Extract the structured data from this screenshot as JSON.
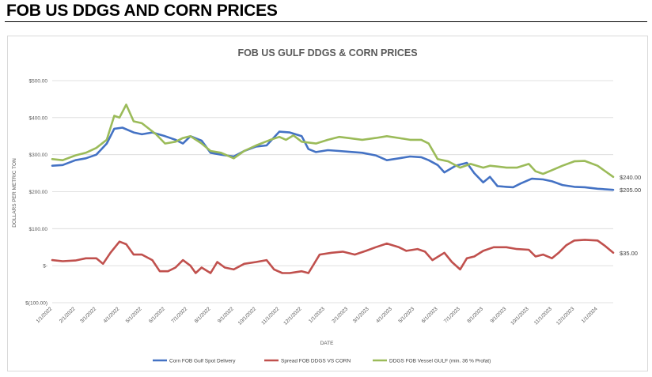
{
  "header": {
    "title": "FOB US DDGS AND CORN PRICES"
  },
  "chart_data": {
    "type": "line",
    "title": "FOB US GULF DDGS & CORN PRICES",
    "xlabel": "DATE",
    "ylabel": "DOLLARS PER METRIC TON",
    "ylim": [
      -100,
      500
    ],
    "yticks": [
      -100,
      0,
      100,
      200,
      300,
      400,
      500
    ],
    "ytick_labels": [
      "$(100.00)",
      "$-",
      "$100.00",
      "$200.00",
      "$300.00",
      "$400.00",
      "$500.00"
    ],
    "x_tick_labels": [
      "1/1/2022",
      "2/1/2022",
      "3/1/2022",
      "4/1/2022",
      "5/1/2022",
      "6/1/2022",
      "7/1/2022",
      "8/1/2022",
      "9/1/2022",
      "10/1/2022",
      "11/1/2022",
      "12/1/2022",
      "1/1/2023",
      "2/1/2023",
      "3/1/2023",
      "4/1/2023",
      "5/1/2023",
      "6/1/2023",
      "7/1/2023",
      "8/1/2023",
      "9/1/2023",
      "10/1/2023",
      "11/1/2023",
      "12/1/2023",
      "1/1/2024"
    ],
    "x_start": "1/1/2022",
    "x_end": "1/22/2024",
    "grid": true,
    "legend_position": "bottom",
    "end_labels": [
      "$240.00",
      "$205.00",
      "$35.00"
    ],
    "series": [
      {
        "name": "Corn FOB Gulf Spot Delivery",
        "color": "#4472c4",
        "points": [
          [
            "1/1/2022",
            270
          ],
          [
            "1/15/2022",
            272
          ],
          [
            "2/1/2022",
            285
          ],
          [
            "2/15/2022",
            290
          ],
          [
            "3/1/2022",
            300
          ],
          [
            "3/15/2022",
            330
          ],
          [
            "3/25/2022",
            370
          ],
          [
            "4/5/2022",
            373
          ],
          [
            "4/20/2022",
            360
          ],
          [
            "5/1/2022",
            355
          ],
          [
            "5/15/2022",
            360
          ],
          [
            "6/1/2022",
            350
          ],
          [
            "6/15/2022",
            340
          ],
          [
            "6/25/2022",
            330
          ],
          [
            "7/5/2022",
            350
          ],
          [
            "7/20/2022",
            338
          ],
          [
            "8/1/2022",
            305
          ],
          [
            "8/15/2022",
            300
          ],
          [
            "9/1/2022",
            295
          ],
          [
            "9/15/2022",
            310
          ],
          [
            "10/1/2022",
            322
          ],
          [
            "10/15/2022",
            325
          ],
          [
            "11/1/2022",
            362
          ],
          [
            "11/15/2022",
            360
          ],
          [
            "12/1/2022",
            350
          ],
          [
            "12/10/2022",
            315
          ],
          [
            "12/20/2022",
            307
          ],
          [
            "1/5/2023",
            312
          ],
          [
            "1/20/2023",
            310
          ],
          [
            "2/1/2023",
            308
          ],
          [
            "2/20/2023",
            305
          ],
          [
            "3/10/2023",
            298
          ],
          [
            "3/25/2023",
            285
          ],
          [
            "4/10/2023",
            290
          ],
          [
            "4/25/2023",
            295
          ],
          [
            "5/10/2023",
            293
          ],
          [
            "5/20/2023",
            285
          ],
          [
            "6/1/2023",
            272
          ],
          [
            "6/10/2023",
            252
          ],
          [
            "6/25/2023",
            270
          ],
          [
            "7/10/2023",
            278
          ],
          [
            "7/20/2023",
            250
          ],
          [
            "8/1/2023",
            225
          ],
          [
            "8/10/2023",
            240
          ],
          [
            "8/20/2023",
            215
          ],
          [
            "9/1/2023",
            213
          ],
          [
            "9/10/2023",
            212
          ],
          [
            "9/20/2023",
            222
          ],
          [
            "10/5/2023",
            235
          ],
          [
            "10/20/2023",
            233
          ],
          [
            "11/1/2023",
            228
          ],
          [
            "11/15/2023",
            218
          ],
          [
            "12/1/2023",
            213
          ],
          [
            "12/15/2023",
            212
          ],
          [
            "1/1/2024",
            208
          ],
          [
            "1/22/2024",
            205
          ]
        ]
      },
      {
        "name": "Spread FOB DDGS VS CORN",
        "color": "#c0504d",
        "points": [
          [
            "1/1/2022",
            15
          ],
          [
            "1/15/2022",
            12
          ],
          [
            "2/1/2022",
            14
          ],
          [
            "2/15/2022",
            20
          ],
          [
            "3/1/2022",
            20
          ],
          [
            "3/10/2022",
            5
          ],
          [
            "3/20/2022",
            35
          ],
          [
            "4/1/2022",
            65
          ],
          [
            "4/10/2022",
            58
          ],
          [
            "4/20/2022",
            30
          ],
          [
            "5/1/2022",
            30
          ],
          [
            "5/15/2022",
            15
          ],
          [
            "5/25/2022",
            -15
          ],
          [
            "6/5/2022",
            -15
          ],
          [
            "6/15/2022",
            -5
          ],
          [
            "6/25/2022",
            15
          ],
          [
            "7/5/2022",
            0
          ],
          [
            "7/12/2022",
            -20
          ],
          [
            "7/20/2022",
            -5
          ],
          [
            "8/1/2022",
            -20
          ],
          [
            "8/10/2022",
            10
          ],
          [
            "8/20/2022",
            -5
          ],
          [
            "9/1/2022",
            -10
          ],
          [
            "9/15/2022",
            5
          ],
          [
            "10/1/2022",
            10
          ],
          [
            "10/15/2022",
            15
          ],
          [
            "10/25/2022",
            -10
          ],
          [
            "11/5/2022",
            -20
          ],
          [
            "11/15/2022",
            -20
          ],
          [
            "12/1/2022",
            -15
          ],
          [
            "12/10/2022",
            -20
          ],
          [
            "12/25/2022",
            30
          ],
          [
            "1/10/2023",
            35
          ],
          [
            "1/25/2023",
            38
          ],
          [
            "2/10/2023",
            30
          ],
          [
            "2/25/2023",
            40
          ],
          [
            "3/10/2023",
            50
          ],
          [
            "3/25/2023",
            60
          ],
          [
            "4/10/2023",
            50
          ],
          [
            "4/20/2023",
            40
          ],
          [
            "5/5/2023",
            45
          ],
          [
            "5/15/2023",
            38
          ],
          [
            "5/25/2023",
            15
          ],
          [
            "6/10/2023",
            35
          ],
          [
            "6/20/2023",
            10
          ],
          [
            "7/1/2023",
            -10
          ],
          [
            "7/10/2023",
            20
          ],
          [
            "7/20/2023",
            25
          ],
          [
            "8/1/2023",
            40
          ],
          [
            "8/15/2023",
            50
          ],
          [
            "9/1/2023",
            50
          ],
          [
            "9/15/2023",
            45
          ],
          [
            "10/1/2023",
            43
          ],
          [
            "10/10/2023",
            25
          ],
          [
            "10/20/2023",
            30
          ],
          [
            "11/1/2023",
            20
          ],
          [
            "11/10/2023",
            35
          ],
          [
            "11/20/2023",
            55
          ],
          [
            "12/1/2023",
            68
          ],
          [
            "12/15/2023",
            70
          ],
          [
            "1/1/2024",
            68
          ],
          [
            "1/10/2024",
            55
          ],
          [
            "1/22/2024",
            35
          ]
        ]
      },
      {
        "name": "DDGS FOB Vessel GULF  (min. 36 % Profat)",
        "color": "#9bbb59",
        "points": [
          [
            "1/1/2022",
            288
          ],
          [
            "1/15/2022",
            285
          ],
          [
            "2/1/2022",
            298
          ],
          [
            "2/15/2022",
            305
          ],
          [
            "3/1/2022",
            318
          ],
          [
            "3/15/2022",
            340
          ],
          [
            "3/25/2022",
            405
          ],
          [
            "4/1/2022",
            400
          ],
          [
            "4/10/2022",
            435
          ],
          [
            "4/20/2022",
            390
          ],
          [
            "5/1/2022",
            385
          ],
          [
            "5/20/2022",
            355
          ],
          [
            "6/1/2022",
            330
          ],
          [
            "6/15/2022",
            335
          ],
          [
            "6/25/2022",
            345
          ],
          [
            "7/5/2022",
            350
          ],
          [
            "7/20/2022",
            330
          ],
          [
            "8/1/2022",
            310
          ],
          [
            "8/15/2022",
            305
          ],
          [
            "9/1/2022",
            290
          ],
          [
            "9/15/2022",
            310
          ],
          [
            "10/1/2022",
            325
          ],
          [
            "10/20/2022",
            340
          ],
          [
            "11/1/2022",
            348
          ],
          [
            "11/10/2022",
            340
          ],
          [
            "11/20/2022",
            352
          ],
          [
            "12/1/2022",
            335
          ],
          [
            "12/20/2022",
            330
          ],
          [
            "1/5/2023",
            340
          ],
          [
            "1/20/2023",
            348
          ],
          [
            "2/1/2023",
            345
          ],
          [
            "2/20/2023",
            340
          ],
          [
            "3/10/2023",
            345
          ],
          [
            "3/25/2023",
            350
          ],
          [
            "4/10/2023",
            345
          ],
          [
            "4/25/2023",
            340
          ],
          [
            "5/10/2023",
            340
          ],
          [
            "5/20/2023",
            330
          ],
          [
            "6/1/2023",
            288
          ],
          [
            "6/15/2023",
            282
          ],
          [
            "7/1/2023",
            265
          ],
          [
            "7/15/2023",
            275
          ],
          [
            "8/1/2023",
            265
          ],
          [
            "8/10/2023",
            270
          ],
          [
            "8/20/2023",
            268
          ],
          [
            "9/1/2023",
            265
          ],
          [
            "9/15/2023",
            265
          ],
          [
            "10/1/2023",
            275
          ],
          [
            "10/10/2023",
            255
          ],
          [
            "10/20/2023",
            248
          ],
          [
            "11/1/2023",
            258
          ],
          [
            "11/15/2023",
            270
          ],
          [
            "12/1/2023",
            282
          ],
          [
            "12/15/2023",
            283
          ],
          [
            "1/1/2024",
            270
          ],
          [
            "1/22/2024",
            240
          ]
        ]
      }
    ]
  }
}
